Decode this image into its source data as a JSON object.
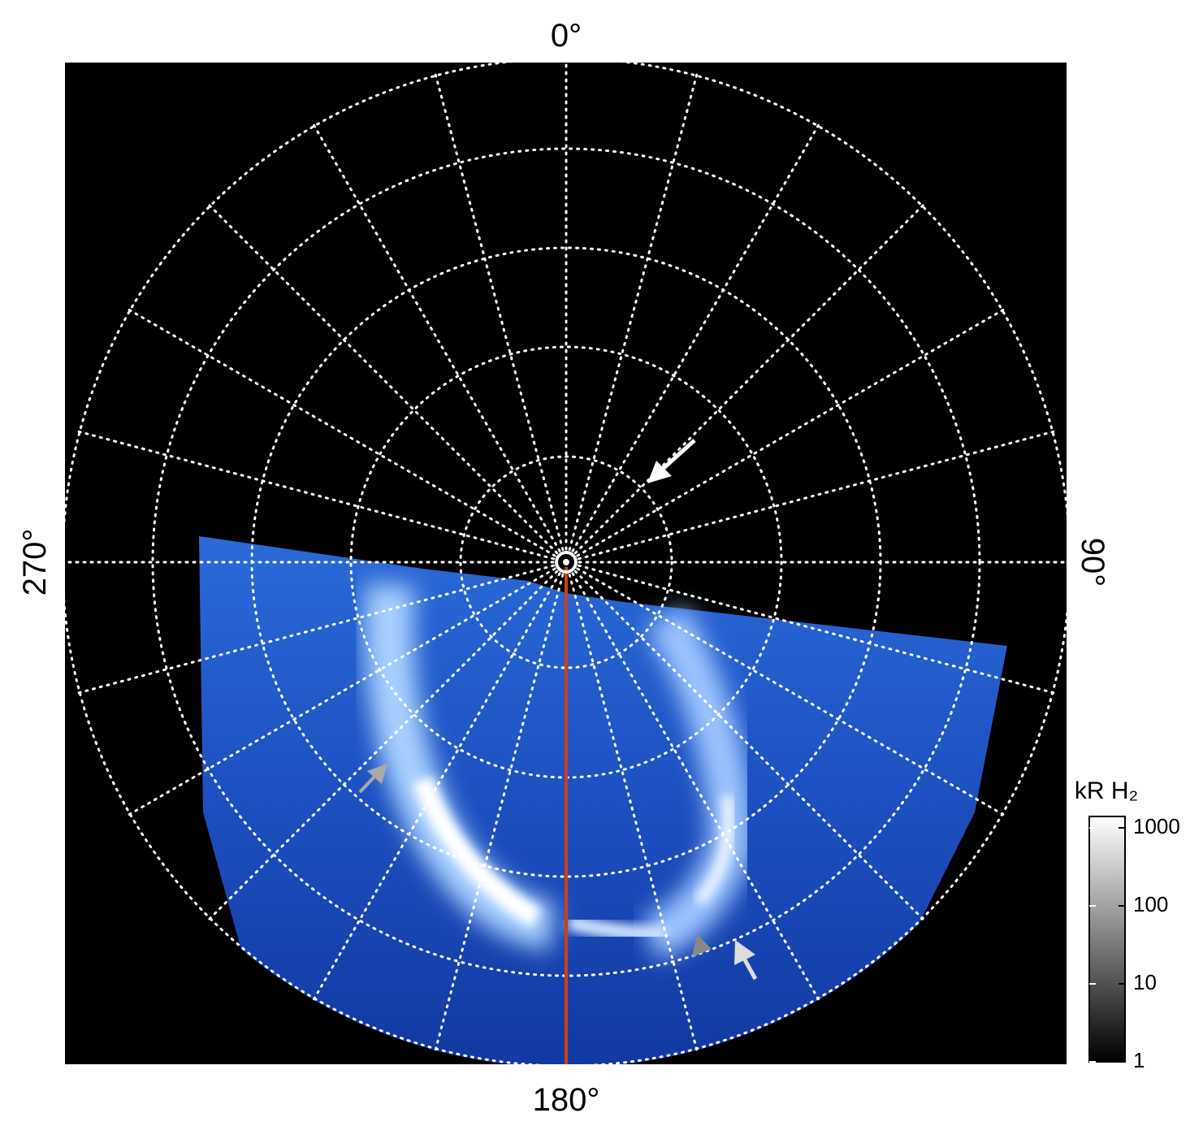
{
  "axis_labels": {
    "top": "0°",
    "right": "90°",
    "bottom": "180°",
    "left": "270°"
  },
  "colorbar": {
    "label": "kR H₂",
    "log": true,
    "lim": [
      1,
      1400
    ],
    "ticks": [
      1,
      10,
      100,
      1000
    ]
  }
}
